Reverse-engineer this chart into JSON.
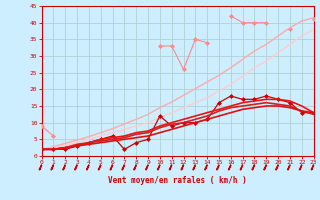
{
  "x": [
    0,
    1,
    2,
    3,
    4,
    5,
    6,
    7,
    8,
    9,
    10,
    11,
    12,
    13,
    14,
    15,
    16,
    17,
    18,
    19,
    20,
    21,
    22,
    23
  ],
  "series": [
    {
      "name": "line1_light_marker",
      "color": "#ff8888",
      "linewidth": 0.8,
      "marker": "D",
      "markersize": 2.0,
      "y": [
        9,
        6,
        null,
        null,
        null,
        null,
        null,
        null,
        null,
        null,
        33,
        33,
        26,
        35,
        34,
        null,
        42,
        40,
        40,
        40,
        null,
        38,
        null,
        41
      ]
    },
    {
      "name": "line2_light_diagonal_upper",
      "color": "#ffaaaa",
      "linewidth": 1.0,
      "marker": null,
      "y": [
        2,
        2.8,
        3.8,
        4.8,
        5.8,
        7.0,
        8.2,
        9.6,
        11,
        12.5,
        14.5,
        16.2,
        18.2,
        20.2,
        22.2,
        24.2,
        26.5,
        29,
        31.5,
        33.5,
        36,
        38.5,
        40.5,
        41.5
      ]
    },
    {
      "name": "line3_light_diagonal_lower",
      "color": "#ffcccc",
      "linewidth": 1.0,
      "marker": null,
      "y": [
        2,
        2.5,
        3.2,
        4,
        5,
        6,
        7,
        8,
        9,
        10,
        11.5,
        13,
        14.5,
        16,
        17.5,
        19.5,
        21.5,
        24,
        26.5,
        28.5,
        31,
        33.5,
        36,
        38
      ]
    },
    {
      "name": "line4_dark_marker",
      "color": "#cc0000",
      "linewidth": 0.9,
      "marker": "D",
      "markersize": 2.0,
      "y": [
        2,
        2,
        2,
        3,
        4,
        5,
        6,
        2,
        4,
        5,
        12,
        9,
        10,
        10,
        11,
        16,
        18,
        17,
        17,
        18,
        17,
        16,
        13,
        13
      ]
    },
    {
      "name": "line5_dark_smooth_upper",
      "color": "#ee1111",
      "linewidth": 1.2,
      "marker": null,
      "y": [
        2,
        2,
        2.5,
        3,
        4,
        5,
        5.5,
        6,
        7,
        7.5,
        9,
        10,
        11,
        12,
        13,
        14,
        15,
        16,
        16.5,
        17,
        17,
        16.5,
        15,
        13
      ]
    },
    {
      "name": "line6_dark_smooth_mid",
      "color": "#cc2222",
      "linewidth": 1.2,
      "marker": null,
      "y": [
        2,
        2,
        2.5,
        3.5,
        4,
        4.5,
        5,
        5.5,
        6.5,
        7,
        8.5,
        9.5,
        10,
        11,
        12,
        13.5,
        14.5,
        15,
        15.5,
        16,
        15.5,
        15,
        13.5,
        12.5
      ]
    },
    {
      "name": "line7_dark_smooth_lower",
      "color": "#dd1111",
      "linewidth": 1.2,
      "marker": null,
      "y": [
        2,
        2,
        2.5,
        3,
        3.5,
        4,
        4.5,
        5,
        5.5,
        6,
        7,
        8,
        9,
        10,
        11,
        12,
        13,
        14,
        14.5,
        15,
        15,
        14.5,
        13.5,
        13
      ]
    }
  ],
  "xlabel": "Vent moyen/en rafales ( km/h )",
  "xlim": [
    0,
    23
  ],
  "ylim": [
    0,
    45
  ],
  "yticks": [
    0,
    5,
    10,
    15,
    20,
    25,
    30,
    35,
    40,
    45
  ],
  "xticks": [
    0,
    1,
    2,
    3,
    4,
    5,
    6,
    7,
    8,
    9,
    10,
    11,
    12,
    13,
    14,
    15,
    16,
    17,
    18,
    19,
    20,
    21,
    22,
    23
  ],
  "bg_color": "#cceeff",
  "grid_color": "#aacccc",
  "axis_color": "#cc0000",
  "tick_color": "#cc0000",
  "label_color": "#cc0000"
}
